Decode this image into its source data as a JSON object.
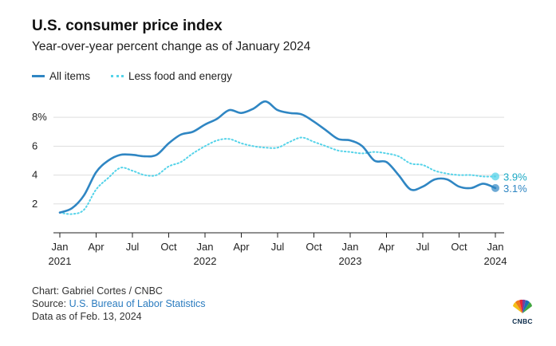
{
  "header": {
    "title": "U.S. consumer price index",
    "subtitle": "Year-over-year percent change as of January 2024"
  },
  "legend": {
    "all_items": "All items",
    "core": "Less food and energy"
  },
  "colors": {
    "all_items": "#2f86c3",
    "core": "#55d3e9",
    "all_items_end_label": "#2f86c3",
    "core_end_label": "#1aa8c4"
  },
  "chart_data": {
    "type": "line",
    "x": [
      "2021-01",
      "2021-02",
      "2021-03",
      "2021-04",
      "2021-05",
      "2021-06",
      "2021-07",
      "2021-08",
      "2021-09",
      "2021-10",
      "2021-11",
      "2021-12",
      "2022-01",
      "2022-02",
      "2022-03",
      "2022-04",
      "2022-05",
      "2022-06",
      "2022-07",
      "2022-08",
      "2022-09",
      "2022-10",
      "2022-11",
      "2022-12",
      "2023-01",
      "2023-02",
      "2023-03",
      "2023-04",
      "2023-05",
      "2023-06",
      "2023-07",
      "2023-08",
      "2023-09",
      "2023-10",
      "2023-11",
      "2023-12",
      "2024-01"
    ],
    "series": [
      {
        "name": "All items",
        "style": "solid",
        "values": [
          1.4,
          1.7,
          2.6,
          4.2,
          5.0,
          5.4,
          5.4,
          5.3,
          5.4,
          6.2,
          6.8,
          7.0,
          7.5,
          7.9,
          8.5,
          8.3,
          8.6,
          9.1,
          8.5,
          8.3,
          8.2,
          7.7,
          7.1,
          6.5,
          6.4,
          6.0,
          5.0,
          4.9,
          4.0,
          3.0,
          3.2,
          3.7,
          3.7,
          3.2,
          3.1,
          3.4,
          3.1
        ]
      },
      {
        "name": "Less food and energy",
        "style": "dotted",
        "values": [
          1.4,
          1.3,
          1.6,
          3.0,
          3.8,
          4.5,
          4.3,
          4.0,
          4.0,
          4.6,
          4.9,
          5.5,
          6.0,
          6.4,
          6.5,
          6.2,
          6.0,
          5.9,
          5.9,
          6.3,
          6.6,
          6.3,
          6.0,
          5.7,
          5.6,
          5.5,
          5.6,
          5.5,
          5.3,
          4.8,
          4.7,
          4.3,
          4.1,
          4.0,
          4.0,
          3.9,
          3.9
        ]
      }
    ],
    "end_labels": [
      "3.9%",
      "3.1%"
    ],
    "ylim": [
      0,
      9.5
    ],
    "y_ticks": [
      {
        "value": 2,
        "label": "2"
      },
      {
        "value": 4,
        "label": "4"
      },
      {
        "value": 6,
        "label": "6"
      },
      {
        "value": 8,
        "label": "8%"
      }
    ],
    "x_ticks": [
      {
        "index": 0,
        "label": "Jan",
        "year": "2021"
      },
      {
        "index": 3,
        "label": "Apr",
        "year": ""
      },
      {
        "index": 6,
        "label": "Jul",
        "year": ""
      },
      {
        "index": 9,
        "label": "Oct",
        "year": ""
      },
      {
        "index": 12,
        "label": "Jan",
        "year": "2022"
      },
      {
        "index": 15,
        "label": "Apr",
        "year": ""
      },
      {
        "index": 18,
        "label": "Jul",
        "year": ""
      },
      {
        "index": 21,
        "label": "Oct",
        "year": ""
      },
      {
        "index": 24,
        "label": "Jan",
        "year": "2023"
      },
      {
        "index": 27,
        "label": "Apr",
        "year": ""
      },
      {
        "index": 30,
        "label": "Jul",
        "year": ""
      },
      {
        "index": 33,
        "label": "Oct",
        "year": ""
      },
      {
        "index": 36,
        "label": "Jan",
        "year": "2024"
      }
    ],
    "grid": true,
    "legend_position": "top-left"
  },
  "footer": {
    "credit": "Chart: Gabriel Cortes / CNBC",
    "source_prefix": "Source: ",
    "source_link": "U.S. Bureau of Labor Statistics",
    "date": "Data as of Feb. 13, 2024"
  },
  "logo": {
    "text": "CNBC",
    "icon": "cnbc-peacock-icon"
  }
}
